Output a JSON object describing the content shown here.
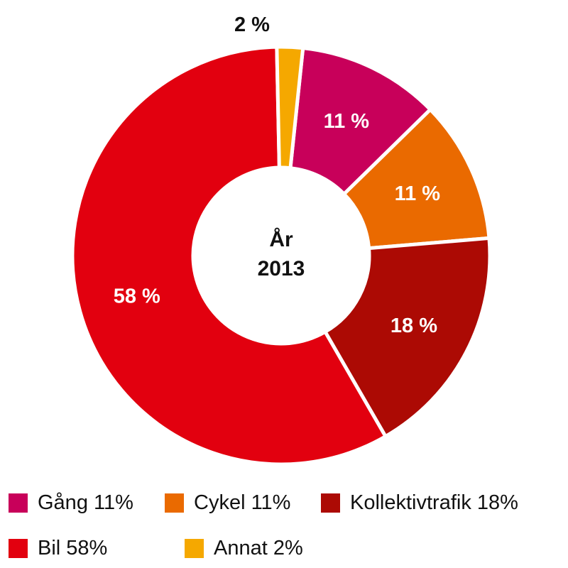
{
  "chart_data": {
    "type": "pie",
    "center_label": [
      "År",
      "2013"
    ],
    "categories": [
      "Gång",
      "Cykel",
      "Kollektivtrafik",
      "Bil",
      "Annat"
    ],
    "values": [
      11,
      11,
      18,
      58,
      2
    ],
    "data_labels": [
      "11 %",
      "11 %",
      "18 %",
      "58 %",
      "2 %"
    ],
    "colors": [
      "#c8005a",
      "#ea6a00",
      "#ac0a04",
      "#e2000f",
      "#f5a800"
    ],
    "legend": [
      {
        "label": "Gång 11%",
        "color": "#c8005a"
      },
      {
        "label": "Cykel 11%",
        "color": "#ea6a00"
      },
      {
        "label": "Kollektivtrafik 18%",
        "color": "#ac0a04"
      },
      {
        "label": "Bil 58%",
        "color": "#e2000f"
      },
      {
        "label": "Annat 2%",
        "color": "#f5a800"
      }
    ],
    "legend_position": "bottom"
  }
}
